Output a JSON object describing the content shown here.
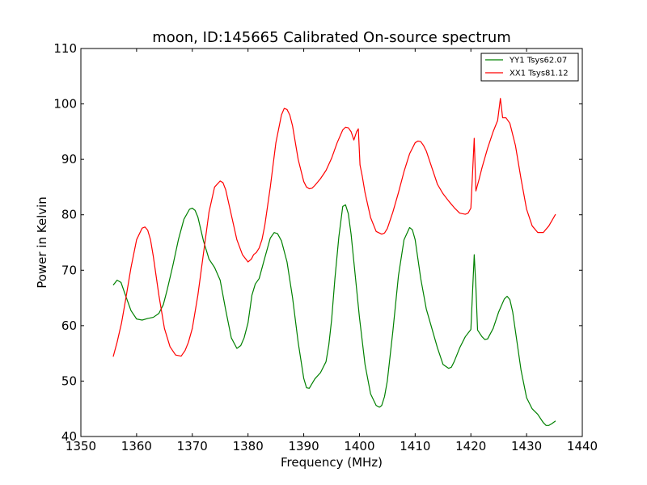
{
  "chart_data": {
    "type": "line",
    "title": "moon, ID:145665 Calibrated On-source spectrum",
    "xlabel": "Frequency (MHz)",
    "ylabel": "Power in Kelvin",
    "xlim": [
      1350,
      1440
    ],
    "ylim": [
      40,
      110
    ],
    "xticks": [
      1350,
      1360,
      1370,
      1380,
      1390,
      1400,
      1410,
      1420,
      1430,
      1440
    ],
    "yticks": [
      40,
      50,
      60,
      70,
      80,
      90,
      100,
      110
    ],
    "legend_position": "top-right",
    "grid": false,
    "series": [
      {
        "name": "YY1 Tsys62.07",
        "color": "#008000",
        "x": [
          1355.8,
          1356.5,
          1357.2,
          1358,
          1359,
          1360,
          1361,
          1362,
          1363,
          1364,
          1364.8,
          1365.5,
          1366.5,
          1367.5,
          1368.5,
          1369.5,
          1370,
          1370.5,
          1371,
          1372,
          1373,
          1374,
          1375,
          1376,
          1377,
          1378,
          1378.7,
          1379.3,
          1380,
          1380.7,
          1381.3,
          1382,
          1383,
          1384,
          1384.7,
          1385.3,
          1386,
          1387,
          1388,
          1389,
          1390,
          1390.5,
          1391,
          1392,
          1393,
          1394,
          1394.5,
          1395,
          1395.6,
          1396.3,
          1397,
          1397.5,
          1398,
          1398.5,
          1399,
          1400,
          1401,
          1402,
          1403,
          1403.6,
          1404,
          1404.5,
          1405,
          1406,
          1407,
          1408,
          1409,
          1409.5,
          1410,
          1410.5,
          1411,
          1412,
          1413,
          1414,
          1415,
          1416,
          1416.5,
          1417,
          1418,
          1419,
          1420,
          1420.6,
          1420.9,
          1421.2,
          1422,
          1422.5,
          1423,
          1424,
          1425,
          1426,
          1426.5,
          1427,
          1427.5,
          1428,
          1429,
          1430,
          1431,
          1432,
          1433,
          1433.5,
          1434,
          1434.5,
          1435.2
        ],
        "values": [
          67.3,
          68.2,
          67.8,
          65.5,
          62.7,
          61.2,
          61.0,
          61.3,
          61.5,
          62.2,
          63.8,
          66.5,
          70.8,
          75.5,
          79.2,
          81.0,
          81.2,
          80.8,
          79.6,
          75.3,
          72.0,
          70.5,
          68.2,
          62.8,
          57.8,
          55.9,
          56.4,
          57.8,
          60.5,
          65.5,
          67.5,
          68.5,
          72.2,
          75.8,
          76.8,
          76.6,
          75.3,
          71.5,
          65.0,
          57.0,
          50.5,
          48.8,
          48.7,
          50.4,
          51.5,
          53.5,
          56.5,
          61.0,
          68.5,
          76.0,
          81.5,
          81.8,
          80.2,
          76.5,
          71.5,
          61.5,
          53.0,
          47.7,
          45.6,
          45.3,
          45.6,
          47.2,
          50.0,
          59.0,
          69.0,
          75.5,
          77.7,
          77.3,
          75.5,
          72.0,
          68.5,
          63.0,
          59.5,
          56.0,
          53.0,
          52.3,
          52.5,
          53.5,
          56.0,
          58.0,
          59.3,
          72.8,
          67.0,
          59.2,
          58.0,
          57.5,
          57.6,
          59.5,
          62.5,
          64.8,
          65.3,
          64.7,
          62.5,
          59.0,
          52.0,
          47.0,
          45.0,
          44.0,
          42.5,
          42.0,
          42.0,
          42.3,
          42.8
        ]
      },
      {
        "name": "XX1 Tsys81.12",
        "color": "#ff0000",
        "x": [
          1355.8,
          1356.5,
          1357.3,
          1358,
          1359,
          1360,
          1361,
          1361.5,
          1362,
          1362.5,
          1363,
          1364,
          1365,
          1366,
          1367,
          1368,
          1368.7,
          1369.3,
          1370,
          1371,
          1372,
          1373,
          1374,
          1375,
          1375.5,
          1376,
          1377,
          1378,
          1379,
          1380,
          1380.6,
          1381,
          1381.5,
          1382,
          1382.5,
          1383,
          1384,
          1385,
          1386,
          1386.5,
          1387,
          1387.5,
          1388,
          1389,
          1390,
          1390.5,
          1391,
          1391.5,
          1392,
          1393,
          1394,
          1395,
          1396,
          1397,
          1397.5,
          1398,
          1398.5,
          1399,
          1399.5,
          1399.8,
          1400.1,
          1400.5,
          1401,
          1402,
          1403,
          1404,
          1404.5,
          1405,
          1406,
          1407,
          1408,
          1409,
          1410,
          1410.5,
          1411,
          1411.5,
          1412,
          1413,
          1414,
          1415,
          1416,
          1417,
          1418,
          1419,
          1419.5,
          1420,
          1420.6,
          1420.9,
          1421.5,
          1422,
          1423,
          1424,
          1424.8,
          1425.3,
          1425.7,
          1426.3,
          1427,
          1428,
          1429,
          1430,
          1431,
          1432,
          1433,
          1434,
          1435.2
        ],
        "values": [
          54.4,
          57.0,
          60.5,
          64.5,
          70.5,
          75.5,
          77.6,
          77.8,
          77.2,
          75.5,
          72.5,
          65.5,
          59.5,
          56.2,
          54.7,
          54.5,
          55.5,
          57.0,
          59.5,
          65.5,
          73.0,
          80.5,
          85.0,
          86.1,
          85.8,
          84.5,
          80.0,
          75.5,
          72.8,
          71.5,
          72.0,
          72.8,
          73.2,
          74.0,
          75.5,
          78.0,
          85.0,
          93.0,
          98.0,
          99.2,
          99.0,
          98.0,
          96.0,
          90.0,
          86.0,
          85.0,
          84.7,
          84.8,
          85.3,
          86.5,
          88.0,
          90.2,
          93.0,
          95.3,
          95.8,
          95.7,
          95.0,
          93.5,
          95.0,
          95.5,
          89.0,
          87.0,
          84.0,
          79.5,
          77.0,
          76.5,
          76.7,
          77.5,
          80.5,
          84.0,
          87.8,
          91.0,
          93.0,
          93.3,
          93.2,
          92.5,
          91.5,
          88.5,
          85.5,
          83.8,
          82.5,
          81.3,
          80.3,
          80.1,
          80.3,
          81.2,
          93.8,
          84.3,
          86.5,
          88.5,
          92.0,
          95.0,
          97.0,
          101.0,
          97.5,
          97.5,
          96.5,
          92.5,
          86.5,
          81.0,
          78.0,
          76.8,
          76.8,
          78.0,
          80.1
        ]
      }
    ]
  }
}
